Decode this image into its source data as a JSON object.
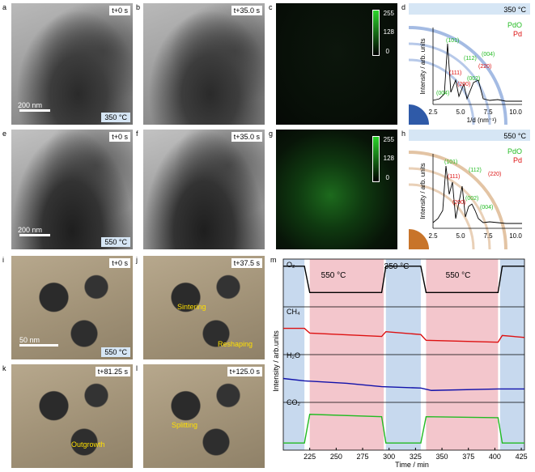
{
  "panels": {
    "a": {
      "label": "a",
      "time": "t+0 s",
      "temp": "350 °C",
      "scale": "200 nm"
    },
    "b": {
      "label": "b",
      "time": "t+35.0 s"
    },
    "c": {
      "label": "c",
      "cbar": [
        "255",
        "128",
        "0"
      ]
    },
    "d": {
      "label": "d",
      "temp": "350 °C",
      "legend_pdo": "PdO",
      "legend_pd": "Pd",
      "ylabel": "Intensity / arb. units",
      "xlabel": "1/d (nm⁻¹)",
      "xticks": [
        "2.5",
        "5.0",
        "7.5",
        "10.0"
      ],
      "peaks_pdo": [
        "(101)",
        "(112)",
        "(004)",
        "(002)",
        "(004)"
      ],
      "peaks_pd": [
        "(111)",
        "(200)",
        "(220)"
      ]
    },
    "e": {
      "label": "e",
      "time": "t+0 s",
      "temp": "550 °C",
      "scale": "200 nm"
    },
    "f": {
      "label": "f",
      "time": "t+35.0 s"
    },
    "g": {
      "label": "g",
      "cbar": [
        "255",
        "128",
        "0"
      ]
    },
    "h": {
      "label": "h",
      "temp": "550 °C",
      "legend_pdo": "PdO",
      "legend_pd": "Pd",
      "ylabel": "Intensity / arb. units",
      "xticks": [
        "2.5",
        "5.0",
        "7.5",
        "10.0"
      ],
      "peaks_pdo": [
        "(101)",
        "(112)",
        "(002)",
        "(004)"
      ],
      "peaks_pd": [
        "(111)",
        "(200)",
        "(220)"
      ]
    },
    "i": {
      "label": "i",
      "time": "t+0 s",
      "temp": "550 °C",
      "scale": "50 nm"
    },
    "j": {
      "label": "j",
      "time": "t+37.5 s",
      "ann1": "Sintering",
      "ann2": "Reshaping"
    },
    "k": {
      "label": "k",
      "time": "t+81.25 s",
      "ann1": "Outgrowth"
    },
    "l": {
      "label": "l",
      "time": "t+125.0 s",
      "ann1": "Splitting"
    },
    "m": {
      "label": "m",
      "bands": [
        "550 °C",
        "350 °C",
        "550 °C"
      ],
      "series": [
        "O₂",
        "CH₄",
        "H₂O",
        "CO₂"
      ],
      "ylabel": "Intensity / arb.units",
      "xlabel": "Time / min",
      "xticks": [
        "225",
        "250",
        "275",
        "300",
        "325",
        "350",
        "375",
        "400",
        "425"
      ]
    }
  },
  "chart_data": {
    "type": "line",
    "xlabel": "Time / min",
    "ylabel": "Intensity / arb.units",
    "xlim": [
      200,
      428
    ],
    "shaded_intervals": [
      {
        "from": 200,
        "to": 220,
        "color": "blue"
      },
      {
        "from": 225,
        "to": 295,
        "color": "red",
        "label": "550 °C"
      },
      {
        "from": 297,
        "to": 330,
        "color": "blue",
        "label": "350 °C"
      },
      {
        "from": 335,
        "to": 403,
        "color": "red",
        "label": "550 °C"
      },
      {
        "from": 405,
        "to": 428,
        "color": "blue"
      }
    ],
    "series": [
      {
        "name": "O₂",
        "color": "#000000",
        "x": [
          200,
          220,
          225,
          293,
          297,
          330,
          335,
          403,
          407,
          428
        ],
        "y": [
          0.85,
          0.85,
          0.3,
          0.3,
          0.85,
          0.85,
          0.3,
          0.3,
          0.85,
          0.85
        ]
      },
      {
        "name": "CH₄",
        "color": "#dd1111",
        "x": [
          200,
          220,
          225,
          293,
          297,
          330,
          335,
          403,
          407,
          428
        ],
        "y": [
          0.55,
          0.55,
          0.45,
          0.38,
          0.48,
          0.42,
          0.3,
          0.26,
          0.4,
          0.36
        ]
      },
      {
        "name": "H₂O",
        "color": "#1111aa",
        "x": [
          200,
          220,
          260,
          293,
          330,
          340,
          403,
          428
        ],
        "y": [
          0.5,
          0.45,
          0.4,
          0.33,
          0.3,
          0.25,
          0.28,
          0.28
        ]
      },
      {
        "name": "CO₂",
        "color": "#22bb22",
        "x": [
          200,
          220,
          225,
          293,
          297,
          330,
          335,
          403,
          407,
          428
        ],
        "y": [
          0.15,
          0.15,
          0.75,
          0.7,
          0.15,
          0.15,
          0.7,
          0.68,
          0.15,
          0.15
        ]
      }
    ]
  }
}
